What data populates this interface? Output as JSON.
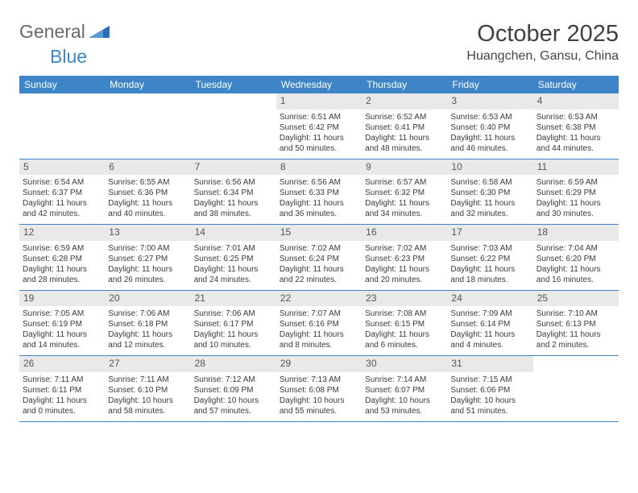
{
  "brand": {
    "part1": "General",
    "part2": "Blue"
  },
  "title": "October 2025",
  "location": "Huangchen, Gansu, China",
  "colors": {
    "header_bg": "#3d85c6",
    "daynum_bg": "#e9e9e9",
    "text": "#3a3a3a",
    "brand_gray": "#6a6a6a",
    "brand_blue": "#3d85c6"
  },
  "dow": [
    "Sunday",
    "Monday",
    "Tuesday",
    "Wednesday",
    "Thursday",
    "Friday",
    "Saturday"
  ],
  "weeks": [
    [
      {
        "n": "",
        "empty": true
      },
      {
        "n": "",
        "empty": true
      },
      {
        "n": "",
        "empty": true
      },
      {
        "n": "1",
        "sr": "6:51 AM",
        "ss": "6:42 PM",
        "dh": "11",
        "dm": "50"
      },
      {
        "n": "2",
        "sr": "6:52 AM",
        "ss": "6:41 PM",
        "dh": "11",
        "dm": "48"
      },
      {
        "n": "3",
        "sr": "6:53 AM",
        "ss": "6:40 PM",
        "dh": "11",
        "dm": "46"
      },
      {
        "n": "4",
        "sr": "6:53 AM",
        "ss": "6:38 PM",
        "dh": "11",
        "dm": "44"
      }
    ],
    [
      {
        "n": "5",
        "sr": "6:54 AM",
        "ss": "6:37 PM",
        "dh": "11",
        "dm": "42"
      },
      {
        "n": "6",
        "sr": "6:55 AM",
        "ss": "6:36 PM",
        "dh": "11",
        "dm": "40"
      },
      {
        "n": "7",
        "sr": "6:56 AM",
        "ss": "6:34 PM",
        "dh": "11",
        "dm": "38"
      },
      {
        "n": "8",
        "sr": "6:56 AM",
        "ss": "6:33 PM",
        "dh": "11",
        "dm": "36"
      },
      {
        "n": "9",
        "sr": "6:57 AM",
        "ss": "6:32 PM",
        "dh": "11",
        "dm": "34"
      },
      {
        "n": "10",
        "sr": "6:58 AM",
        "ss": "6:30 PM",
        "dh": "11",
        "dm": "32"
      },
      {
        "n": "11",
        "sr": "6:59 AM",
        "ss": "6:29 PM",
        "dh": "11",
        "dm": "30"
      }
    ],
    [
      {
        "n": "12",
        "sr": "6:59 AM",
        "ss": "6:28 PM",
        "dh": "11",
        "dm": "28"
      },
      {
        "n": "13",
        "sr": "7:00 AM",
        "ss": "6:27 PM",
        "dh": "11",
        "dm": "26"
      },
      {
        "n": "14",
        "sr": "7:01 AM",
        "ss": "6:25 PM",
        "dh": "11",
        "dm": "24"
      },
      {
        "n": "15",
        "sr": "7:02 AM",
        "ss": "6:24 PM",
        "dh": "11",
        "dm": "22"
      },
      {
        "n": "16",
        "sr": "7:02 AM",
        "ss": "6:23 PM",
        "dh": "11",
        "dm": "20"
      },
      {
        "n": "17",
        "sr": "7:03 AM",
        "ss": "6:22 PM",
        "dh": "11",
        "dm": "18"
      },
      {
        "n": "18",
        "sr": "7:04 AM",
        "ss": "6:20 PM",
        "dh": "11",
        "dm": "16"
      }
    ],
    [
      {
        "n": "19",
        "sr": "7:05 AM",
        "ss": "6:19 PM",
        "dh": "11",
        "dm": "14"
      },
      {
        "n": "20",
        "sr": "7:06 AM",
        "ss": "6:18 PM",
        "dh": "11",
        "dm": "12"
      },
      {
        "n": "21",
        "sr": "7:06 AM",
        "ss": "6:17 PM",
        "dh": "11",
        "dm": "10"
      },
      {
        "n": "22",
        "sr": "7:07 AM",
        "ss": "6:16 PM",
        "dh": "11",
        "dm": "8"
      },
      {
        "n": "23",
        "sr": "7:08 AM",
        "ss": "6:15 PM",
        "dh": "11",
        "dm": "6"
      },
      {
        "n": "24",
        "sr": "7:09 AM",
        "ss": "6:14 PM",
        "dh": "11",
        "dm": "4"
      },
      {
        "n": "25",
        "sr": "7:10 AM",
        "ss": "6:13 PM",
        "dh": "11",
        "dm": "2"
      }
    ],
    [
      {
        "n": "26",
        "sr": "7:11 AM",
        "ss": "6:11 PM",
        "dh": "11",
        "dm": "0"
      },
      {
        "n": "27",
        "sr": "7:11 AM",
        "ss": "6:10 PM",
        "dh": "10",
        "dm": "58"
      },
      {
        "n": "28",
        "sr": "7:12 AM",
        "ss": "6:09 PM",
        "dh": "10",
        "dm": "57"
      },
      {
        "n": "29",
        "sr": "7:13 AM",
        "ss": "6:08 PM",
        "dh": "10",
        "dm": "55"
      },
      {
        "n": "30",
        "sr": "7:14 AM",
        "ss": "6:07 PM",
        "dh": "10",
        "dm": "53"
      },
      {
        "n": "31",
        "sr": "7:15 AM",
        "ss": "6:06 PM",
        "dh": "10",
        "dm": "51"
      },
      {
        "n": "",
        "empty": true
      }
    ]
  ]
}
